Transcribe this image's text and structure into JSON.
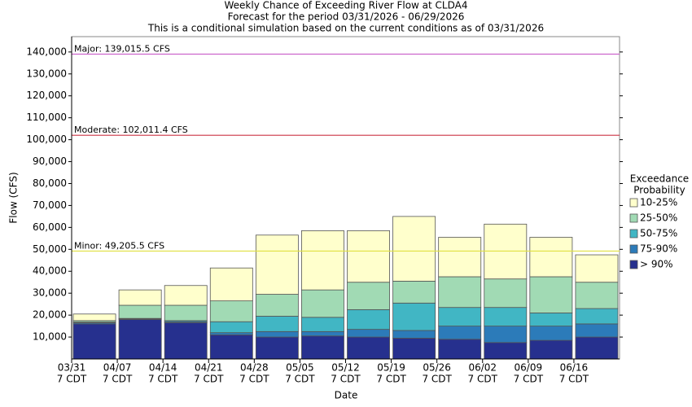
{
  "chart_data": {
    "type": "bar",
    "stacked": true,
    "title": "Weekly Chance of Exceeding River Flow at CLDA4",
    "subtitle": "Forecast for the period 03/31/2026 - 06/29/2026",
    "subtitle2": "This is a conditional simulation based on the current conditions as of 03/31/2026",
    "x_label": "Date",
    "y_label": "Flow (CFS)",
    "categories": [
      "03/31",
      "04/07",
      "04/14",
      "04/21",
      "04/28",
      "05/05",
      "05/12",
      "05/19",
      "05/26",
      "06/02",
      "06/09",
      "06/16"
    ],
    "x_tick_sublabel": "7 CDT",
    "legend_title": [
      "Exceedance",
      "Probability"
    ],
    "legend_position": "right",
    "series": [
      {
        "name": "> 90%",
        "color": "#26308e",
        "values": [
          16000,
          18000,
          16500,
          11000,
          10000,
          10500,
          10000,
          9500,
          9000,
          7500,
          8500,
          10000
        ]
      },
      {
        "name": "75-90%",
        "color": "#2c7bb9",
        "values": [
          500,
          300,
          500,
          1000,
          2500,
          2000,
          3500,
          3500,
          6000,
          7500,
          6500,
          6000
        ]
      },
      {
        "name": "50-75%",
        "color": "#41b6c4",
        "values": [
          300,
          200,
          500,
          5000,
          7000,
          6500,
          9000,
          12500,
          8500,
          8500,
          6000,
          7000
        ]
      },
      {
        "name": "25-50%",
        "color": "#a1dab4",
        "values": [
          700,
          6000,
          7000,
          9500,
          10000,
          12500,
          12500,
          10000,
          14000,
          13000,
          16500,
          12000
        ]
      },
      {
        "name": "10-25%",
        "color": "#ffffcc",
        "values": [
          3000,
          7000,
          9000,
          15000,
          27000,
          27000,
          23500,
          29500,
          18000,
          25000,
          18000,
          12500
        ]
      }
    ],
    "thresholds": [
      {
        "value": 139015.5,
        "label": "Major: 139,015.5 CFS",
        "color": "#cc66cc"
      },
      {
        "value": 102011.4,
        "label": "Moderate: 102,011.4 CFS",
        "color": "#cc3344"
      },
      {
        "value": 49205.5,
        "label": "Minor: 49,205.5 CFS",
        "color": "#e0e040"
      }
    ],
    "ylim": [
      0,
      147000
    ],
    "yticks": [
      {
        "value": 10000,
        "label": "10,000"
      },
      {
        "value": 20000,
        "label": "20,000"
      },
      {
        "value": 30000,
        "label": "30,000"
      },
      {
        "value": 40000,
        "label": "40,000"
      },
      {
        "value": 50000,
        "label": "50,000"
      },
      {
        "value": 60000,
        "label": "60,000"
      },
      {
        "value": 70000,
        "label": "70,000"
      },
      {
        "value": 80000,
        "label": "80,000"
      },
      {
        "value": 90000,
        "label": "90,000"
      },
      {
        "value": 100000,
        "label": "100,000"
      },
      {
        "value": 110000,
        "label": "110,000"
      },
      {
        "value": 120000,
        "label": "120,000"
      },
      {
        "value": 130000,
        "label": "130,000"
      },
      {
        "value": 140000,
        "label": "140,000"
      }
    ],
    "grid": false
  }
}
